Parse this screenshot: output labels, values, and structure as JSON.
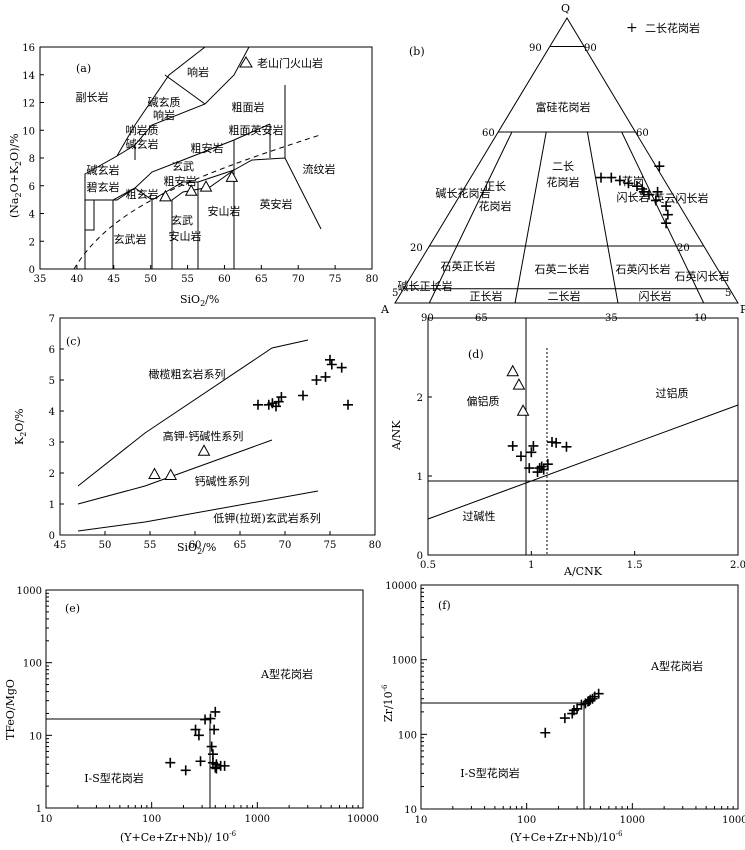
{
  "legend_b": {
    "symbol": "+",
    "label": "二长花岗岩"
  },
  "chart_data": [
    {
      "id": "a",
      "panel_label": "(a)",
      "type": "scatter",
      "xlabel": "SiO2/%",
      "ylabel": "(Na2O+K2O)/%",
      "xlim": [
        35,
        80
      ],
      "ylim": [
        0,
        16
      ],
      "xticks": [
        35,
        40,
        45,
        50,
        55,
        60,
        65,
        70,
        75,
        80
      ],
      "yticks": [
        0,
        2,
        4,
        6,
        8,
        10,
        12,
        14,
        16
      ],
      "legend": "老山门火山岩",
      "field_labels": [
        "副长岩",
        "响岩",
        "碱玄质",
        "响岩",
        "响岩质",
        "碱玄岩",
        "粗面岩",
        "粗面英安岩",
        "粗安岩",
        "碱玄岩",
        "碧玄岩",
        "玄武",
        "粗安岩",
        "粗玄岩",
        "流纹岩",
        "玄武",
        "安山岩",
        "安山岩",
        "英安岩",
        "玄武岩"
      ],
      "series": [
        {
          "name": "老山门火山岩",
          "marker": "triangle",
          "points": [
            [
              52.0,
              5.2
            ],
            [
              55.5,
              5.6
            ],
            [
              57.5,
              5.9
            ],
            [
              61.0,
              6.6
            ]
          ]
        },
        {
          "marker": "plus",
          "points": []
        }
      ]
    },
    {
      "id": "b",
      "panel_label": "(b)",
      "type": "ternary",
      "apices": [
        "Q",
        "A",
        "P"
      ],
      "q_ticks": [
        "90",
        "90",
        "60",
        "60",
        "20",
        "20",
        "5",
        "5"
      ],
      "base_ticks": [
        "90",
        "65",
        "35",
        "10"
      ],
      "field_labels": [
        "富硅花岗岩",
        "二长",
        "花岗岩",
        "正长",
        "花岗岩",
        "碱长花岗岩",
        "花岗",
        "闪长岩",
        "英云闪长岩",
        "石英正长岩",
        "石英二长岩",
        "石英闪长岩",
        "碱长正长岩",
        "正长岩",
        "二长岩",
        "闪长岩",
        "石英闪长岩"
      ],
      "series": [
        {
          "name": "二长花岗岩",
          "marker": "plus",
          "points_Q_P": [
            [
              44,
              38
            ],
            [
              44,
              41
            ],
            [
              43,
              44
            ],
            [
              42,
              47
            ],
            [
              41,
              50
            ],
            [
              40,
              52
            ],
            [
              39,
              53
            ],
            [
              38,
              55
            ],
            [
              39,
              57
            ],
            [
              36,
              58
            ],
            [
              34,
              62
            ],
            [
              31,
              64
            ],
            [
              28,
              65
            ],
            [
              48,
              53
            ]
          ]
        }
      ]
    },
    {
      "id": "c",
      "panel_label": "(c)",
      "type": "scatter",
      "xlabel": "SiO2/%",
      "ylabel": "K2O/%",
      "xlim": [
        45,
        80
      ],
      "ylim": [
        0,
        7
      ],
      "xticks": [
        45,
        50,
        55,
        60,
        65,
        70,
        75,
        80
      ],
      "yticks": [
        0,
        1,
        2,
        3,
        4,
        5,
        6,
        7
      ],
      "field_labels": [
        "橄榄粗玄岩系列",
        "高钾-钙碱性系列",
        "钙碱性系列",
        "低钾(拉斑)玄武岩系列"
      ],
      "series": [
        {
          "marker": "triangle",
          "points": [
            [
              55.5,
              1.95
            ],
            [
              57.3,
              1.92
            ],
            [
              61.0,
              2.7
            ]
          ]
        },
        {
          "marker": "plus",
          "points": [
            [
              67.0,
              4.2
            ],
            [
              68.2,
              4.2
            ],
            [
              68.6,
              4.25
            ],
            [
              69.0,
              4.15
            ],
            [
              69.3,
              4.3
            ],
            [
              69.6,
              4.45
            ],
            [
              72.0,
              4.5
            ],
            [
              73.5,
              5.0
            ],
            [
              74.5,
              5.1
            ],
            [
              75.0,
              5.65
            ],
            [
              75.2,
              5.5
            ],
            [
              76.3,
              5.4
            ],
            [
              77.0,
              4.2
            ]
          ]
        }
      ]
    },
    {
      "id": "d",
      "panel_label": "(d)",
      "type": "scatter",
      "xlabel": "A/CNK",
      "ylabel": "A/NK",
      "xlim": [
        0.5,
        2.0
      ],
      "ylim": [
        0,
        3
      ],
      "xticks": [
        0.5,
        1,
        1.5,
        2.0
      ],
      "xtick_labels": [
        "0.5",
        "1",
        "1.5",
        "2.0"
      ],
      "yticks": [
        0,
        1,
        2
      ],
      "field_labels": [
        "偏铝质",
        "过铝质",
        "过碱性"
      ],
      "series": [
        {
          "marker": "triangle",
          "points": [
            [
              0.91,
              2.32
            ],
            [
              0.94,
              2.15
            ],
            [
              0.96,
              1.82
            ]
          ]
        },
        {
          "marker": "plus",
          "points": [
            [
              0.91,
              1.38
            ],
            [
              0.95,
              1.25
            ],
            [
              0.99,
              1.1
            ],
            [
              1.0,
              1.3
            ],
            [
              1.01,
              1.38
            ],
            [
              1.03,
              1.05
            ],
            [
              1.04,
              1.1
            ],
            [
              1.05,
              1.12
            ],
            [
              1.06,
              1.08
            ],
            [
              1.08,
              1.15
            ],
            [
              1.1,
              1.43
            ],
            [
              1.12,
              1.42
            ],
            [
              1.17,
              1.37
            ]
          ]
        }
      ]
    },
    {
      "id": "e",
      "panel_label": "(e)",
      "type": "scatter",
      "log": true,
      "xlabel": "(Y+Ce+Zr+Nb)/ 10-6",
      "ylabel": "TFeO/MgO",
      "xlim": [
        10,
        10000
      ],
      "ylim": [
        1,
        1000
      ],
      "xtick_labels": [
        "10",
        "100",
        "1000",
        "10000"
      ],
      "ytick_labels": [
        "1",
        "10",
        "100",
        "1000"
      ],
      "field_labels": [
        "A型花岗岩",
        "I-S型花岗岩"
      ],
      "series": [
        {
          "marker": "plus",
          "points": [
            [
              150,
              4.2
            ],
            [
              210,
              3.3
            ],
            [
              260,
              12
            ],
            [
              280,
              10
            ],
            [
              290,
              4.4
            ],
            [
              320,
              16.5
            ],
            [
              360,
              17
            ],
            [
              370,
              7
            ],
            [
              380,
              5.5
            ],
            [
              380,
              4.2
            ],
            [
              390,
              12
            ],
            [
              400,
              21
            ],
            [
              400,
              3.6
            ],
            [
              410,
              3.5
            ],
            [
              410,
              4
            ],
            [
              450,
              3.8
            ],
            [
              490,
              3.8
            ]
          ]
        }
      ]
    },
    {
      "id": "f",
      "panel_label": "(f)",
      "type": "scatter",
      "log": true,
      "xlabel": "(Y+Ce+Zr+Nb)/10-6",
      "ylabel": "Zr/10-6",
      "xlim": [
        10,
        10000
      ],
      "ylim": [
        10,
        10000
      ],
      "xtick_labels": [
        "10",
        "100",
        "1000",
        "10000"
      ],
      "ytick_labels": [
        "10",
        "100",
        "1000",
        "10000"
      ],
      "field_labels": [
        "A型花岗岩",
        "I-S型花岗岩"
      ],
      "series": [
        {
          "marker": "plus",
          "points": [
            [
              150,
              105
            ],
            [
              230,
              165
            ],
            [
              270,
              190
            ],
            [
              280,
              210
            ],
            [
              300,
              220
            ],
            [
              330,
              250
            ],
            [
              360,
              260
            ],
            [
              380,
              275
            ],
            [
              390,
              280
            ],
            [
              400,
              290
            ],
            [
              420,
              300
            ],
            [
              440,
              320
            ],
            [
              480,
              350
            ]
          ]
        }
      ]
    }
  ]
}
